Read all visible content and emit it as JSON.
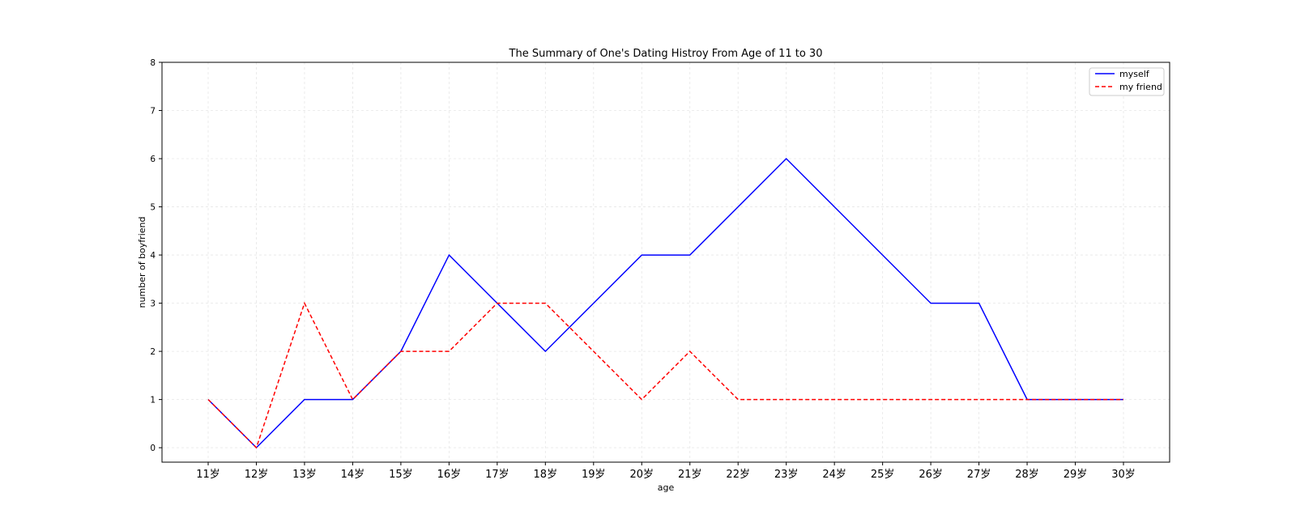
{
  "chart_data": {
    "type": "line",
    "title": "The Summary of One's Dating Histroy From Age of 11 to 30",
    "xlabel": "age",
    "ylabel": "number of boyfriend",
    "categories": [
      "11岁",
      "12岁",
      "13岁",
      "14岁",
      "15岁",
      "16岁",
      "17岁",
      "18岁",
      "19岁",
      "20岁",
      "21岁",
      "22岁",
      "23岁",
      "24岁",
      "25岁",
      "26岁",
      "27岁",
      "28岁",
      "29岁",
      "30岁"
    ],
    "ylim": [
      -0.3,
      8
    ],
    "yticks": [
      0,
      1,
      2,
      3,
      4,
      5,
      6,
      7,
      8
    ],
    "grid": true,
    "legend_position": "top-right",
    "series": [
      {
        "name": "myself",
        "color": "#0000ff",
        "style": "solid",
        "values": [
          1,
          0,
          1,
          1,
          2,
          4,
          3,
          2,
          3,
          4,
          4,
          5,
          6,
          5,
          4,
          3,
          3,
          1,
          1,
          1
        ]
      },
      {
        "name": "my friend",
        "color": "#ff0000",
        "style": "dashed",
        "values": [
          1,
          0,
          3,
          1,
          2,
          2,
          3,
          3,
          2,
          1,
          2,
          1,
          1,
          1,
          1,
          1,
          1,
          1,
          1,
          1
        ]
      }
    ]
  }
}
